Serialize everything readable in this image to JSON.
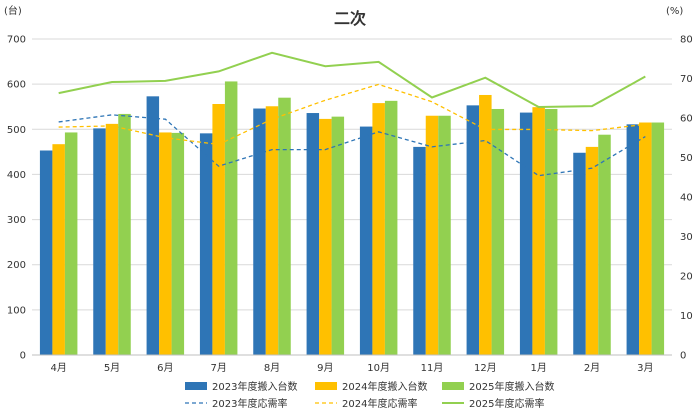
{
  "chart_data": {
    "type": "bar",
    "title": "二次",
    "y_left_unit": "(台)",
    "y_right_unit": "(%)",
    "ylim_left": [
      0,
      700
    ],
    "ylim_right": [
      0,
      80
    ],
    "y_left_ticks": [
      "0",
      "100",
      "200",
      "300",
      "400",
      "500",
      "600",
      "700"
    ],
    "y_right_ticks": [
      "0",
      "10",
      "20",
      "30",
      "40",
      "50",
      "60",
      "70",
      "80"
    ],
    "categories": [
      "4月",
      "5月",
      "6月",
      "7月",
      "8月",
      "9月",
      "10月",
      "11月",
      "12月",
      "1月",
      "2月",
      "3月"
    ],
    "grid": true,
    "legend_position": "bottom",
    "bar_series": [
      {
        "name": "2023年度搬入台数",
        "color": "#2e75b6",
        "values": [
          453,
          502,
          573,
          491,
          546,
          536,
          506,
          461,
          553,
          537,
          448,
          511
        ]
      },
      {
        "name": "2024年度搬入台数",
        "color": "#ffc000",
        "values": [
          467,
          512,
          493,
          556,
          551,
          523,
          558,
          530,
          576,
          549,
          461,
          515
        ]
      },
      {
        "name": "2025年度搬入台数",
        "color": "#92d050",
        "values": [
          493,
          534,
          492,
          606,
          570,
          528,
          563,
          530,
          545,
          545,
          488,
          515
        ]
      }
    ],
    "line_series": [
      {
        "name": "2023年度応需率",
        "color": "#2e75b6",
        "dash": "dashed",
        "values": [
          59.0,
          60.8,
          59.7,
          47.8,
          52.0,
          52.0,
          56.5,
          52.7,
          54.3,
          45.4,
          47.3,
          55.3
        ]
      },
      {
        "name": "2024年度応需率",
        "color": "#ffc000",
        "dash": "dashed",
        "values": [
          57.7,
          58.0,
          55.0,
          53.3,
          59.7,
          64.5,
          68.5,
          64.1,
          57.1,
          57.1,
          56.8,
          58.4
        ]
      },
      {
        "name": "2025年度応需率",
        "color": "#92d050",
        "dash": "solid",
        "values": [
          66.3,
          69.1,
          69.4,
          71.8,
          76.5,
          73.1,
          74.2,
          65.2,
          70.2,
          62.8,
          63.0,
          70.5
        ]
      }
    ]
  }
}
